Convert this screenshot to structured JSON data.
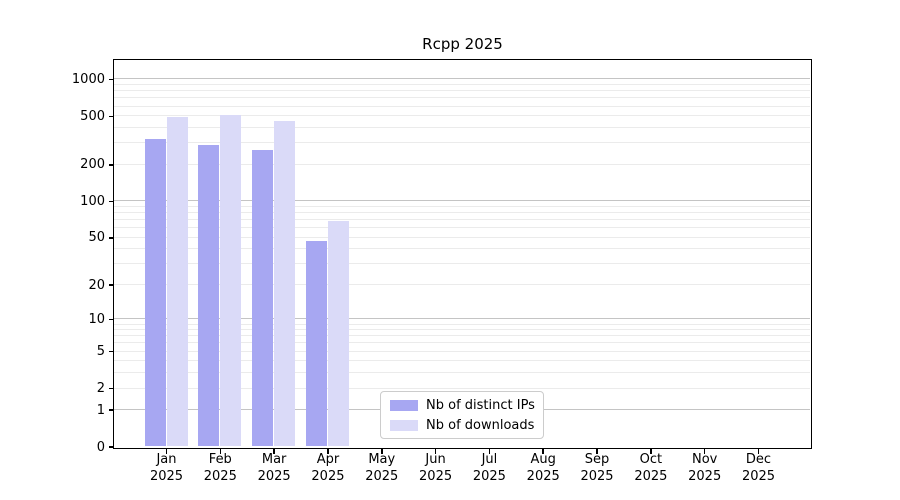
{
  "title": "Rcpp 2025",
  "chart_data": {
    "type": "bar",
    "title": "Rcpp 2025",
    "categories": [
      "Jan 2025",
      "Feb 2025",
      "Mar 2025",
      "Apr 2025",
      "May 2025",
      "Jun 2025",
      "Jul 2025",
      "Aug 2025",
      "Sep 2025",
      "Oct 2025",
      "Nov 2025",
      "Dec 2025"
    ],
    "series": [
      {
        "name": "Nb of distinct IPs",
        "color": "#a7a7f2",
        "values": [
          320,
          290,
          260,
          47,
          null,
          null,
          null,
          null,
          null,
          null,
          null,
          null
        ]
      },
      {
        "name": "Nb of downloads",
        "color": "#dadaf8",
        "values": [
          485,
          510,
          450,
          68,
          null,
          null,
          null,
          null,
          null,
          null,
          null,
          null
        ]
      }
    ],
    "y_scale": "log1p",
    "y_ticks": [
      0,
      1,
      2,
      5,
      10,
      20,
      50,
      100,
      200,
      500,
      1000
    ],
    "major_gridlines": [
      1,
      10,
      100,
      1000
    ],
    "minor_gridline_decades": [
      1,
      10,
      100
    ],
    "ylim": [
      0,
      1430
    ],
    "grid": true,
    "legend_position": "lower center",
    "colors": {
      "major_grid": "#c4c4c4",
      "minor_grid": "#ebebeb",
      "axis": "#000000",
      "background": "#ffffff"
    }
  }
}
